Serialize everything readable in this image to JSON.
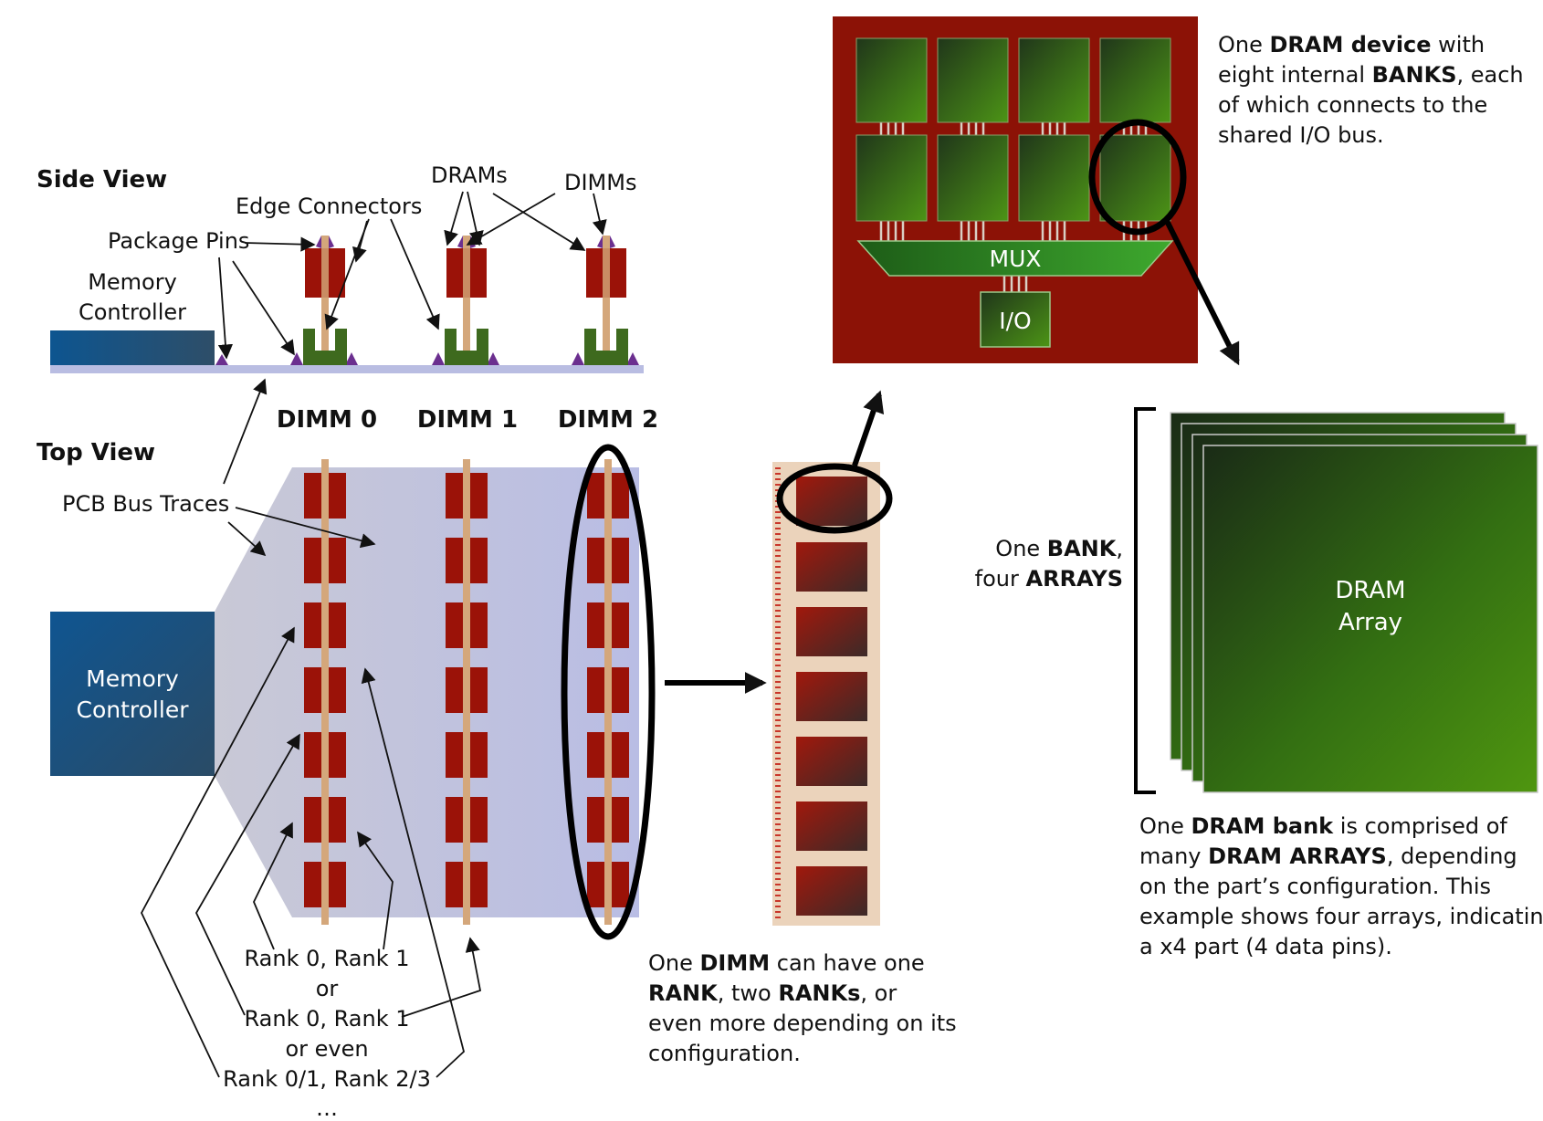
{
  "side_view": {
    "title": "Side View",
    "labels": {
      "package_pins": "Package Pins",
      "edge_connectors": "Edge Connectors",
      "drams": "DRAMs",
      "dimms": "DIMMs",
      "memory_controller_line1": "Memory",
      "memory_controller_line2": "Controller"
    }
  },
  "top_view": {
    "title": "Top View",
    "pcb_bus_traces": "PCB Bus Traces",
    "memory_controller_line1": "Memory",
    "memory_controller_line2": "Controller",
    "dimm_labels": [
      "DIMM 0",
      "DIMM 1",
      "DIMM 2"
    ],
    "rank_notes": [
      "Rank 0, Rank 1",
      "or",
      "Rank 0, Rank 1",
      "or even",
      "Rank 0/1, Rank 2/3",
      "…"
    ]
  },
  "dimm_caption": {
    "lines": [
      [
        {
          "t": "One ",
          "b": false
        },
        {
          "t": "DIMM",
          "b": true
        },
        {
          "t": " can have one",
          "b": false
        }
      ],
      [
        {
          "t": "RANK",
          "b": true
        },
        {
          "t": ", two ",
          "b": false
        },
        {
          "t": "RANKs",
          "b": true
        },
        {
          "t": ", or",
          "b": false
        }
      ],
      [
        {
          "t": "even more depending on its",
          "b": false
        }
      ],
      [
        {
          "t": "configuration.",
          "b": false
        }
      ]
    ]
  },
  "dram_device": {
    "mux_label": "MUX",
    "io_label": "I/O",
    "caption_lines": [
      [
        {
          "t": "One ",
          "b": false
        },
        {
          "t": "DRAM device",
          "b": true
        },
        {
          "t": " with",
          "b": false
        }
      ],
      [
        {
          "t": "eight internal ",
          "b": false
        },
        {
          "t": "BANKS",
          "b": true
        },
        {
          "t": ", each",
          "b": false
        }
      ],
      [
        {
          "t": "of which connects to the",
          "b": false
        }
      ],
      [
        {
          "t": "shared I/O bus.",
          "b": false
        }
      ]
    ]
  },
  "bank": {
    "side_lines": [
      [
        {
          "t": "One ",
          "b": false
        },
        {
          "t": "BANK",
          "b": true
        },
        {
          "t": ",",
          "b": false
        }
      ],
      [
        {
          "t": "four ",
          "b": false
        },
        {
          "t": "ARRAYS",
          "b": true
        }
      ]
    ],
    "array_label_line1": "DRAM",
    "array_label_line2": "Array",
    "caption_lines": [
      [
        {
          "t": "One ",
          "b": false
        },
        {
          "t": "DRAM bank",
          "b": true
        },
        {
          "t": " is comprised of",
          "b": false
        }
      ],
      [
        {
          "t": "many ",
          "b": false
        },
        {
          "t": "DRAM ARRAYS",
          "b": true
        },
        {
          "t": ", depending",
          "b": false
        }
      ],
      [
        {
          "t": "on the part’s configuration.  This",
          "b": false
        }
      ],
      [
        {
          "t": "example shows four arrays, indicating",
          "b": false
        }
      ],
      [
        {
          "t": "a x4 part (4 data pins).",
          "b": false
        }
      ]
    ]
  },
  "colors": {
    "dram_red": "#9b1208",
    "device_red": "#8c1206",
    "bank_green_light": "#4f9410",
    "bank_green_dark": "#1b2a17",
    "controller_blue": "#1b5a8c",
    "pcb_lavender": "#c6cae4",
    "dimm_trace": "#d4a77b",
    "connector_green": "#3e6a1e",
    "mux_green": "#2c8a24"
  }
}
